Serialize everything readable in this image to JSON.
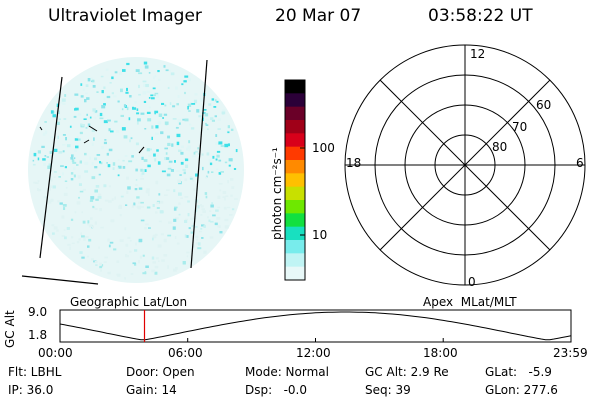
{
  "header": {
    "instrument": "Ultraviolet Imager",
    "date": "20 Mar 07",
    "time": "03:58:22 UT"
  },
  "left_panel": {
    "label": "Geographic Lat/Lon",
    "speck_color": "#3ee0e8"
  },
  "colorbar": {
    "unit_label": "photon cm⁻²s⁻¹",
    "ticks": [
      "100",
      "10"
    ],
    "colors_top_to_bottom": [
      "#000000",
      "#2b0038",
      "#6a0028",
      "#a00018",
      "#d8001a",
      "#ff3a00",
      "#ff8a00",
      "#ffc000",
      "#c8e000",
      "#6ee800",
      "#12e040",
      "#18e0c0",
      "#78ecec",
      "#c0f4f4",
      "#e8f8f8"
    ]
  },
  "polar_plot": {
    "label": "Apex  MLat/MLT",
    "mlt_labels": {
      "top": "12",
      "left": "18",
      "right": "6",
      "bottom": "0"
    },
    "lat_labels": [
      "60",
      "70",
      "80"
    ]
  },
  "timeline": {
    "ylabel": "GC Alt",
    "yticks": [
      "9.0",
      "1.8"
    ],
    "xticks": [
      "00:00",
      "06:00",
      "12:00",
      "18:00",
      "23:59"
    ],
    "marker_time_hours": 3.97,
    "marker_color": "#e00000"
  },
  "status": {
    "flt": "Flt: LBHL",
    "ip": "IP: 36.0",
    "door": "Door: Open",
    "gain": "Gain: 14",
    "mode": "Mode: Normal",
    "dsp": "Dsp:   -0.0",
    "gc_alt": "GC Alt: 2.9 Re",
    "seq": "Seq: 39",
    "glat": "GLat:   -5.9",
    "glon": "GLon: 277.6"
  }
}
